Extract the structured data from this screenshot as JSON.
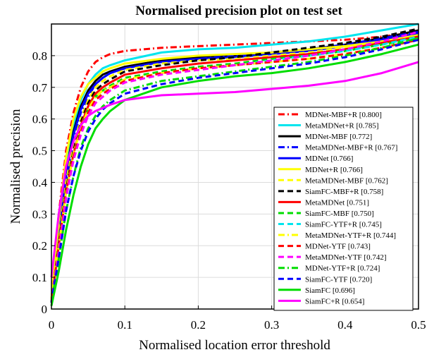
{
  "chart_data": {
    "type": "line",
    "title": "Normalised precision plot on test set",
    "xlabel": "Normalised location error threshold",
    "ylabel": "Normalised precision",
    "xlim": [
      0,
      0.5
    ],
    "ylim": [
      0,
      0.9
    ],
    "xticks": [
      0,
      0.1,
      0.2,
      0.3,
      0.4,
      0.5
    ],
    "xtick_labels": [
      "0",
      "0.1",
      "0.2",
      "0.3",
      "0.4",
      "0.5"
    ],
    "yticks": [
      0,
      0.1,
      0.2,
      0.3,
      0.4,
      0.5,
      0.6,
      0.7,
      0.8
    ],
    "ytick_labels": [
      "0",
      "0.1",
      "0.2",
      "0.3",
      "0.4",
      "0.5",
      "0.6",
      "0.7",
      "0.8"
    ],
    "grid": true,
    "legend_position": "bottom-right",
    "x": [
      0,
      0.01,
      0.02,
      0.03,
      0.04,
      0.05,
      0.06,
      0.07,
      0.08,
      0.1,
      0.15,
      0.2,
      0.25,
      0.3,
      0.35,
      0.4,
      0.45,
      0.5
    ],
    "series": [
      {
        "name": "MDNet-MBF+R [0.800]",
        "color": "#ff0000",
        "dash": "dashdot",
        "values": [
          0.03,
          0.3,
          0.5,
          0.62,
          0.7,
          0.75,
          0.78,
          0.795,
          0.805,
          0.815,
          0.825,
          0.83,
          0.835,
          0.84,
          0.845,
          0.85,
          0.86,
          0.875
        ]
      },
      {
        "name": "MetaMDNet+R [0.785]",
        "color": "#00e5ee",
        "dash": "solid",
        "values": [
          0.02,
          0.25,
          0.45,
          0.58,
          0.66,
          0.71,
          0.74,
          0.76,
          0.77,
          0.785,
          0.81,
          0.82,
          0.825,
          0.835,
          0.845,
          0.86,
          0.88,
          0.9
        ]
      },
      {
        "name": "MDNet-MBF [0.772]",
        "color": "#000000",
        "dash": "solid",
        "values": [
          0.02,
          0.24,
          0.43,
          0.56,
          0.64,
          0.69,
          0.72,
          0.74,
          0.75,
          0.765,
          0.785,
          0.795,
          0.8,
          0.81,
          0.82,
          0.835,
          0.855,
          0.88
        ]
      },
      {
        "name": "MetaMDNet-MBF+R [0.767]",
        "color": "#0000ff",
        "dash": "dashdot",
        "values": [
          0.02,
          0.22,
          0.4,
          0.53,
          0.62,
          0.67,
          0.71,
          0.73,
          0.745,
          0.76,
          0.78,
          0.79,
          0.8,
          0.81,
          0.82,
          0.835,
          0.855,
          0.875
        ]
      },
      {
        "name": "MDNet [0.766]",
        "color": "#0000ff",
        "dash": "solid",
        "values": [
          0.02,
          0.23,
          0.42,
          0.55,
          0.63,
          0.68,
          0.71,
          0.73,
          0.745,
          0.76,
          0.78,
          0.79,
          0.795,
          0.805,
          0.815,
          0.83,
          0.85,
          0.87
        ]
      },
      {
        "name": "MDNet+R [0.766]",
        "color": "#ffff00",
        "dash": "solid",
        "values": [
          0.03,
          0.28,
          0.48,
          0.6,
          0.67,
          0.71,
          0.73,
          0.75,
          0.76,
          0.775,
          0.79,
          0.8,
          0.805,
          0.81,
          0.82,
          0.83,
          0.845,
          0.865
        ]
      },
      {
        "name": "MetaMDNet-MBF [0.762]",
        "color": "#ffff00",
        "dash": "dashed",
        "values": [
          0.02,
          0.22,
          0.4,
          0.52,
          0.6,
          0.66,
          0.7,
          0.72,
          0.735,
          0.755,
          0.775,
          0.785,
          0.79,
          0.8,
          0.81,
          0.825,
          0.845,
          0.865
        ]
      },
      {
        "name": "SiamFC-MBF+R [0.758]",
        "color": "#000000",
        "dash": "dashed",
        "values": [
          0.02,
          0.21,
          0.38,
          0.5,
          0.59,
          0.65,
          0.69,
          0.71,
          0.725,
          0.75,
          0.77,
          0.785,
          0.795,
          0.81,
          0.825,
          0.84,
          0.86,
          0.885
        ]
      },
      {
        "name": "MetaMDNet [0.751]",
        "color": "#ff0000",
        "dash": "solid",
        "values": [
          0.02,
          0.2,
          0.37,
          0.49,
          0.58,
          0.64,
          0.68,
          0.7,
          0.715,
          0.74,
          0.76,
          0.775,
          0.785,
          0.795,
          0.805,
          0.82,
          0.84,
          0.86
        ]
      },
      {
        "name": "SiamFC-MBF [0.750]",
        "color": "#00dd00",
        "dash": "dashed",
        "values": [
          0.02,
          0.19,
          0.36,
          0.48,
          0.57,
          0.63,
          0.67,
          0.69,
          0.705,
          0.73,
          0.75,
          0.765,
          0.775,
          0.79,
          0.8,
          0.815,
          0.835,
          0.855
        ]
      },
      {
        "name": "SiamFC-YTF+R [0.745]",
        "color": "#00e5ee",
        "dash": "dashed",
        "values": [
          0.02,
          0.18,
          0.35,
          0.47,
          0.56,
          0.62,
          0.66,
          0.68,
          0.695,
          0.72,
          0.745,
          0.76,
          0.77,
          0.785,
          0.8,
          0.815,
          0.835,
          0.86
        ]
      },
      {
        "name": "MetaMDNet-YTF+R [0.744]",
        "color": "#ffff00",
        "dash": "dashdot",
        "values": [
          0.02,
          0.2,
          0.37,
          0.49,
          0.57,
          0.63,
          0.67,
          0.69,
          0.7,
          0.725,
          0.745,
          0.76,
          0.77,
          0.78,
          0.79,
          0.805,
          0.825,
          0.85
        ]
      },
      {
        "name": "MDNet-YTF [0.743]",
        "color": "#ff0000",
        "dash": "dashed",
        "values": [
          0.02,
          0.19,
          0.36,
          0.48,
          0.56,
          0.62,
          0.66,
          0.68,
          0.695,
          0.72,
          0.745,
          0.76,
          0.77,
          0.78,
          0.79,
          0.805,
          0.825,
          0.85
        ]
      },
      {
        "name": "MetaMDNet-YTF [0.742]",
        "color": "#ff00ff",
        "dash": "dashed",
        "values": [
          0.02,
          0.18,
          0.35,
          0.47,
          0.55,
          0.61,
          0.65,
          0.67,
          0.69,
          0.715,
          0.74,
          0.755,
          0.77,
          0.785,
          0.8,
          0.82,
          0.845,
          0.875
        ]
      },
      {
        "name": "MDNet-YTF+R [0.724]",
        "color": "#00dd00",
        "dash": "dashdot",
        "values": [
          0.02,
          0.16,
          0.31,
          0.42,
          0.51,
          0.57,
          0.61,
          0.64,
          0.66,
          0.69,
          0.72,
          0.735,
          0.75,
          0.765,
          0.78,
          0.8,
          0.825,
          0.855
        ]
      },
      {
        "name": "SiamFC-YTF [0.720]",
        "color": "#0000ff",
        "dash": "dashed",
        "values": [
          0.02,
          0.16,
          0.31,
          0.42,
          0.5,
          0.56,
          0.6,
          0.63,
          0.65,
          0.68,
          0.71,
          0.73,
          0.745,
          0.76,
          0.775,
          0.795,
          0.82,
          0.85
        ]
      },
      {
        "name": "SiamFC [0.696]",
        "color": "#00dd00",
        "dash": "solid",
        "values": [
          0.01,
          0.12,
          0.25,
          0.36,
          0.45,
          0.52,
          0.57,
          0.6,
          0.625,
          0.66,
          0.7,
          0.72,
          0.735,
          0.745,
          0.76,
          0.78,
          0.805,
          0.835
        ]
      },
      {
        "name": "SiamFC+R [0.654]",
        "color": "#ff00ff",
        "dash": "solid",
        "values": [
          0.1,
          0.3,
          0.45,
          0.53,
          0.58,
          0.61,
          0.625,
          0.635,
          0.645,
          0.66,
          0.675,
          0.68,
          0.685,
          0.695,
          0.705,
          0.72,
          0.745,
          0.78
        ]
      }
    ]
  }
}
